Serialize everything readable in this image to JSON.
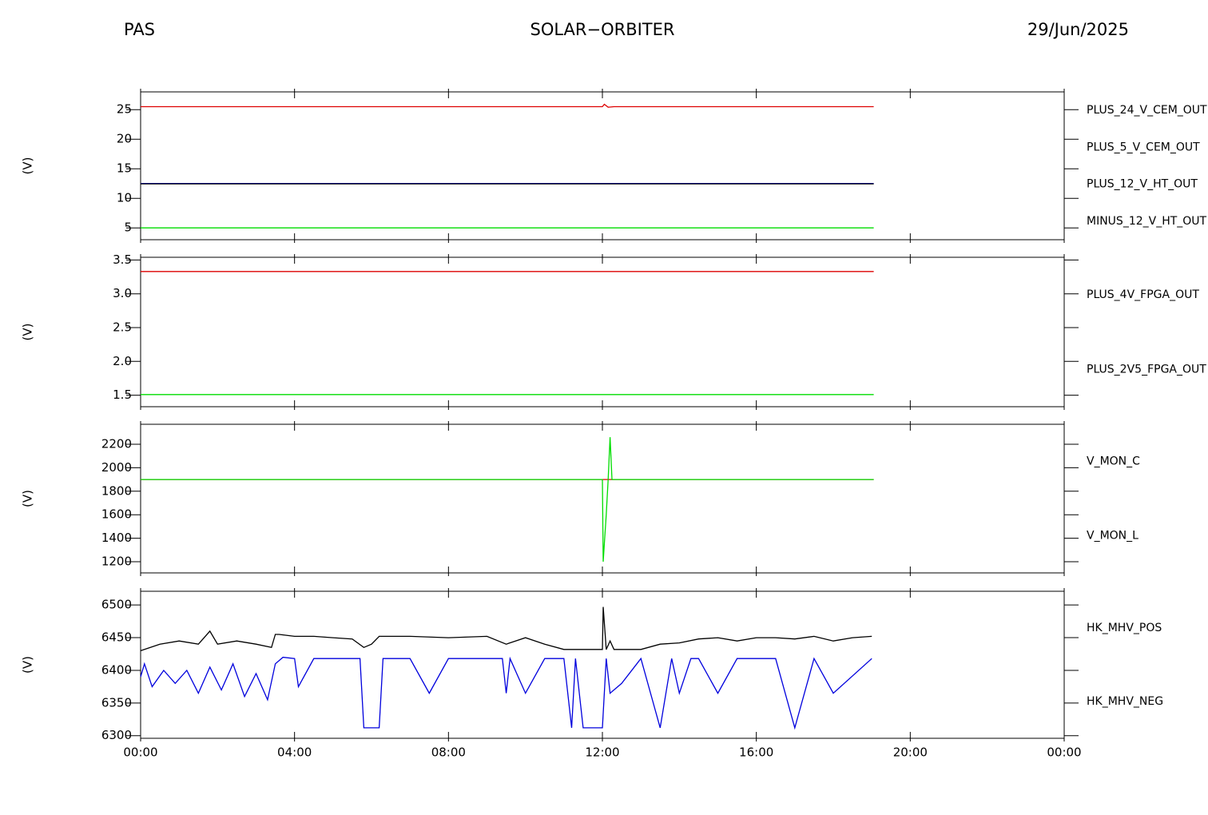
{
  "header": {
    "left": "PAS",
    "center": "SOLAR−ORBITER",
    "right": "29/Jun/2025"
  },
  "chart_data": [
    {
      "type": "line",
      "y_label": "(V)",
      "ylim": [
        3,
        28
      ],
      "yticks": [
        5,
        10,
        15,
        20,
        25
      ],
      "series": [
        {
          "name": "PLUS_24_V_CEM_OUT",
          "color": "#dd0000",
          "x": [
            0,
            12,
            12.05,
            12.15,
            12.3,
            19.05
          ],
          "values": [
            25.5,
            25.5,
            25.9,
            25.4,
            25.5,
            25.5
          ]
        },
        {
          "name": "PLUS_5_V_CEM_OUT",
          "color": "#00dd00",
          "x": [
            0,
            19.05
          ],
          "values": [
            5,
            5
          ]
        },
        {
          "name": "PLUS_12_V_HT_OUT",
          "color": "#0000cc",
          "x": [
            0,
            19.05
          ],
          "values": [
            12.5,
            12.5
          ]
        },
        {
          "name": "MINUS_12_V_HT_OUT",
          "color": "#000000",
          "x": [
            0,
            19.05
          ],
          "values": [
            12.45,
            12.45
          ]
        }
      ]
    },
    {
      "type": "line",
      "y_label": "(V)",
      "ylim": [
        1.33,
        3.54
      ],
      "yticks": [
        1.5,
        {
          "value": 2,
          "label": "2.0"
        },
        2.5,
        {
          "value": 3,
          "label": "3.0"
        },
        3.5
      ],
      "series": [
        {
          "name": "PLUS_4V_FPGA_OUT",
          "color": "#dd0000",
          "x": [
            0,
            19.05
          ],
          "values": [
            3.33,
            3.33
          ]
        },
        {
          "name": "PLUS_2V5_FPGA_OUT",
          "color": "#00dd00",
          "x": [
            0,
            19.05
          ],
          "values": [
            1.51,
            1.51
          ]
        }
      ]
    },
    {
      "type": "line",
      "y_label": "(V)",
      "ylim": [
        1105,
        2370
      ],
      "yticks": [
        1200,
        1400,
        1600,
        1800,
        2000,
        2200
      ],
      "series": [
        {
          "name": "V_MON_C",
          "color": "#dd0000",
          "x": [
            0,
            19.05
          ],
          "values": [
            1900,
            1900
          ]
        },
        {
          "name": "V_MON_L",
          "color": "#00dd00",
          "x": [
            0,
            12,
            12.02,
            12.05,
            12.1,
            12.15,
            12.2,
            12.25,
            19.05
          ],
          "values": [
            1900,
            1900,
            1200,
            1350,
            1600,
            1900,
            2260,
            1900,
            1900
          ]
        }
      ]
    },
    {
      "type": "line",
      "y_label": "(V)",
      "ylim": [
        6296,
        6521
      ],
      "yticks": [
        6300,
        6350,
        6400,
        6450,
        6500
      ],
      "xlim": [
        0,
        24
      ],
      "xticks": [
        {
          "value": 0,
          "label": "00:00"
        },
        {
          "value": 4,
          "label": "04:00"
        },
        {
          "value": 8,
          "label": "08:00"
        },
        {
          "value": 12,
          "label": "12:00"
        },
        {
          "value": 16,
          "label": "16:00"
        },
        {
          "value": 20,
          "label": "20:00"
        },
        {
          "value": 24,
          "label": "00:00"
        }
      ],
      "series": [
        {
          "name": "HK_MHV_POS",
          "color": "#000000",
          "x": [
            0,
            0.5,
            1,
            1.5,
            1.8,
            2,
            2.5,
            3,
            3.4,
            3.5,
            3.6,
            4.0,
            4.5,
            5,
            5.5,
            5.8,
            6,
            6.2,
            6.5,
            7,
            8,
            9,
            9.5,
            10,
            10.5,
            11,
            11.5,
            12,
            12.02,
            12.1,
            12.2,
            12.3,
            13,
            13.5,
            14,
            14.5,
            15,
            15.5,
            16,
            16.5,
            17,
            17.5,
            18,
            18.5,
            19
          ],
          "values": [
            6430,
            6440,
            6445,
            6440,
            6460,
            6440,
            6445,
            6440,
            6435,
            6455,
            6455,
            6452,
            6452,
            6450,
            6448,
            6435,
            6440,
            6452,
            6452,
            6452,
            6450,
            6452,
            6440,
            6450,
            6440,
            6432,
            6432,
            6432,
            6497,
            6432,
            6445,
            6432,
            6432,
            6440,
            6442,
            6448,
            6450,
            6445,
            6450,
            6450,
            6448,
            6452,
            6445,
            6450,
            6452
          ]
        },
        {
          "name": "HK_MHV_NEG",
          "color": "#0000dd",
          "x": [
            0,
            0.1,
            0.3,
            0.6,
            0.9,
            1.2,
            1.5,
            1.8,
            2.1,
            2.4,
            2.7,
            3,
            3.3,
            3.5,
            3.7,
            4,
            4.1,
            4.5,
            5,
            5.7,
            5.8,
            5.9,
            6.2,
            6.3,
            6.5,
            7,
            7.5,
            8,
            9,
            9.4,
            9.5,
            9.6,
            10,
            10.5,
            11,
            11.2,
            11.3,
            11.5,
            12,
            12.1,
            12.2,
            12.5,
            13,
            13.5,
            13.8,
            14,
            14.3,
            14.5,
            15,
            15.5,
            16,
            16.5,
            17,
            17.5,
            18,
            19
          ],
          "values": [
            6390,
            6410,
            6375,
            6400,
            6380,
            6400,
            6365,
            6405,
            6370,
            6410,
            6360,
            6395,
            6355,
            6410,
            6420,
            6418,
            6375,
            6418,
            6418,
            6418,
            6312,
            6312,
            6312,
            6418,
            6418,
            6418,
            6365,
            6418,
            6418,
            6418,
            6365,
            6418,
            6365,
            6418,
            6418,
            6312,
            6418,
            6312,
            6312,
            6418,
            6365,
            6380,
            6418,
            6312,
            6418,
            6365,
            6418,
            6418,
            6365,
            6418,
            6418,
            6418,
            6312,
            6418,
            6365,
            6418
          ]
        }
      ]
    }
  ]
}
